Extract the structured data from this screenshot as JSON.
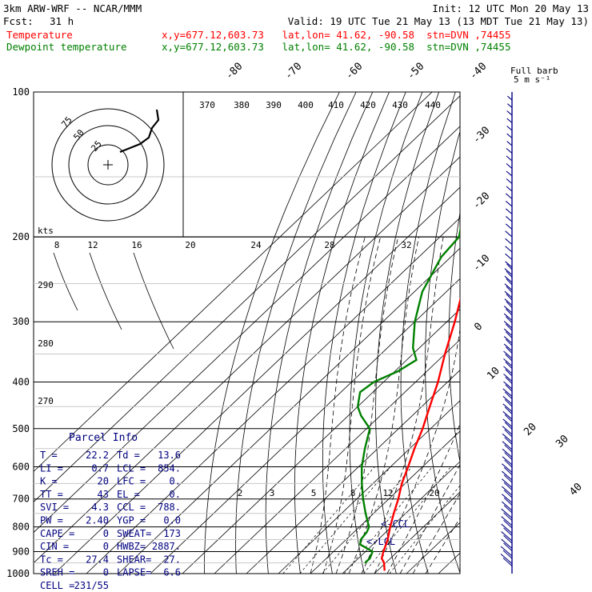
{
  "header": {
    "model": "3km ARW-WRF -- NCAR/MMM",
    "init": "Init: 12 UTC Mon 20 May 13",
    "fcst_label": "Fcst:",
    "fcst_value": "31 h",
    "valid": "Valid: 19 UTC Tue 21 May 13 (13 MDT Tue 21 May 13)",
    "temp_label": "Temperature",
    "temp_loc": "x,y=677.12,603.73   lat,lon= 41.62, -90.58  stn=DVN ,74455",
    "dew_label": "Dewpoint temperature",
    "dew_loc": "x,y=677.12,603.73   lat,lon= 41.62, -90.58  stn=DVN ,74455"
  },
  "colors": {
    "temperature": "#ff0000",
    "dewpoint": "#008000",
    "info": "#000080",
    "grid": "#000000"
  },
  "chart_data": {
    "type": "line",
    "chart_kind": "skew-T log-P sounding",
    "y_scale": "log",
    "pressure_levels_hPa": [
      100,
      200,
      300,
      400,
      500,
      600,
      700,
      800,
      900,
      1000
    ],
    "isotherm_labels": [
      "-80",
      "-70",
      "-60",
      "-50",
      "-40",
      "-30",
      "-20",
      "-10",
      "0",
      "10",
      "20",
      "30",
      "40"
    ],
    "theta_labels": [
      "370",
      "380",
      "390",
      "400",
      "410",
      "420",
      "430",
      "440"
    ],
    "theta_left_labels": [
      "290",
      "280",
      "270"
    ],
    "mixing_ratio_labels": [
      "2",
      "3",
      "5",
      "8",
      "12",
      "20"
    ],
    "hodograph": {
      "units_label": "kts",
      "ring_labels": [
        "75",
        "50",
        "25"
      ],
      "speed_labels": [
        "8",
        "12",
        "16",
        "20",
        "24",
        "28",
        "32"
      ]
    },
    "wind_label": {
      "title": "Full barb",
      "units": "5 m s⁻¹"
    },
    "annotations": [
      "<-CCL",
      "<-LCL"
    ],
    "series": [
      {
        "name": "Temperature",
        "color": "#ff0000",
        "points": [
          {
            "p": 986,
            "t": 22.2
          },
          {
            "p": 950,
            "t": 19.5
          },
          {
            "p": 930,
            "t": 17.3
          },
          {
            "p": 900,
            "t": 15.6
          },
          {
            "p": 850,
            "t": 13.0
          },
          {
            "p": 800,
            "t": 9.6
          },
          {
            "p": 750,
            "t": 6.3
          },
          {
            "p": 700,
            "t": 3.0
          },
          {
            "p": 650,
            "t": -1.0
          },
          {
            "p": 600,
            "t": -4.5
          },
          {
            "p": 550,
            "t": -8.5
          },
          {
            "p": 500,
            "t": -12.5
          },
          {
            "p": 450,
            "t": -17.5
          },
          {
            "p": 400,
            "t": -23.0
          },
          {
            "p": 350,
            "t": -30.0
          },
          {
            "p": 300,
            "t": -37.5
          },
          {
            "p": 270,
            "t": -43.0
          },
          {
            "p": 250,
            "t": -47.0
          },
          {
            "p": 230,
            "t": -51.0
          },
          {
            "p": 210,
            "t": -55.0
          },
          {
            "p": 200,
            "t": -55.5
          },
          {
            "p": 180,
            "t": -56.5
          },
          {
            "p": 160,
            "t": -58.5
          },
          {
            "p": 150,
            "t": -59.0
          },
          {
            "p": 140,
            "t": -61.0
          },
          {
            "p": 130,
            "t": -63.0
          },
          {
            "p": 120,
            "t": -65.5
          },
          {
            "p": 110,
            "t": -68.0
          },
          {
            "p": 100,
            "t": -71.0
          }
        ]
      },
      {
        "name": "Dewpoint temperature",
        "color": "#008000",
        "points": [
          {
            "p": 950,
            "t": 13.5
          },
          {
            "p": 930,
            "t": 13.6
          },
          {
            "p": 900,
            "t": 12.2
          },
          {
            "p": 870,
            "t": 6.0
          },
          {
            "p": 850,
            "t": 4.6
          },
          {
            "p": 820,
            "t": 4.0
          },
          {
            "p": 800,
            "t": 3.0
          },
          {
            "p": 750,
            "t": -2.5
          },
          {
            "p": 700,
            "t": -8.0
          },
          {
            "p": 650,
            "t": -13.5
          },
          {
            "p": 600,
            "t": -19.0
          },
          {
            "p": 550,
            "t": -24.0
          },
          {
            "p": 500,
            "t": -29.0
          },
          {
            "p": 470,
            "t": -36.0
          },
          {
            "p": 450,
            "t": -40.0
          },
          {
            "p": 420,
            "t": -44.0
          },
          {
            "p": 400,
            "t": -43.0
          },
          {
            "p": 380,
            "t": -39.0
          },
          {
            "p": 360,
            "t": -37.0
          },
          {
            "p": 340,
            "t": -42.0
          },
          {
            "p": 300,
            "t": -50.0
          },
          {
            "p": 260,
            "t": -57.5
          },
          {
            "p": 220,
            "t": -63.0
          },
          {
            "p": 200,
            "t": -64.0
          },
          {
            "p": 180,
            "t": -70.0
          },
          {
            "p": 160,
            "t": -74.0
          },
          {
            "p": 140,
            "t": -79.0
          },
          {
            "p": 120,
            "t": -84.0
          },
          {
            "p": 100,
            "t": -88.0
          }
        ]
      }
    ]
  },
  "parcel_info": {
    "title": "Parcel Info",
    "rows": [
      [
        "T  =",
        "22.2",
        "Td =",
        "13.6"
      ],
      [
        "LI =",
        "0.7",
        "LCL =",
        "854."
      ],
      [
        "K  =",
        "20",
        "LFC =",
        "0."
      ],
      [
        "TT =",
        "43",
        "EL  =",
        "0."
      ],
      [
        "SVI =",
        "4.3",
        "CCL =",
        "788."
      ],
      [
        "PW =",
        "2.40",
        "YGP =",
        "0.0"
      ],
      [
        "CAPE =",
        "0",
        "SWEAT=",
        "173"
      ],
      [
        "CIN =",
        "0",
        "HWBZ=",
        "2887."
      ],
      [
        "Tc =",
        "27.4",
        "SHEAR=",
        "27."
      ],
      [
        "SREH =",
        "0",
        "LAPSE=",
        "6.6"
      ],
      [
        "CELL =",
        "231/55",
        "",
        ""
      ]
    ]
  }
}
